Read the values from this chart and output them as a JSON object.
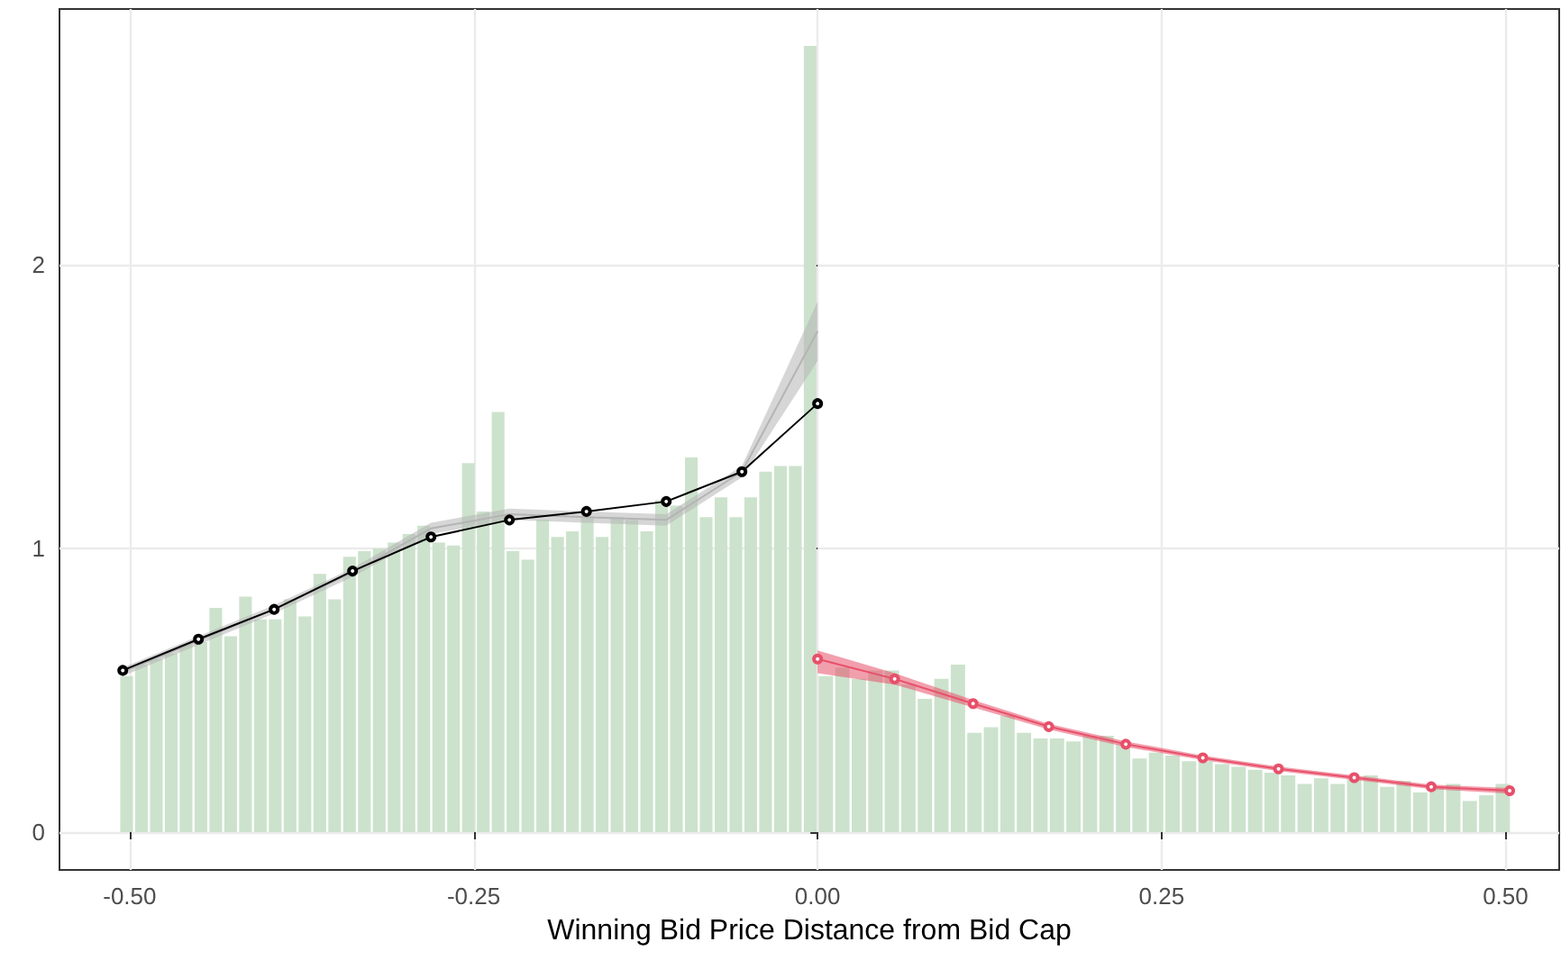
{
  "chart_data": {
    "type": "histogram",
    "xlabel": "Winning Bid Price Distance from Bid Cap",
    "bins": [
      -0.5076,
      -0.4968,
      -0.486,
      -0.4752,
      -0.4644,
      -0.4536,
      -0.4428,
      -0.432,
      -0.4212,
      -0.4104,
      -0.3996,
      -0.3888,
      -0.378,
      -0.3672,
      -0.3564,
      -0.3456,
      -0.3348,
      -0.324,
      -0.3132,
      -0.3024,
      -0.2916,
      -0.2808,
      -0.27,
      -0.2592,
      -0.2484,
      -0.2376,
      -0.2268,
      -0.216,
      -0.2052,
      -0.1944,
      -0.1836,
      -0.1728,
      -0.162,
      -0.1512,
      -0.1404,
      -0.1296,
      -0.1188,
      -0.108,
      -0.0972,
      -0.0864,
      -0.0756,
      -0.0648,
      -0.054,
      -0.0432,
      -0.0324,
      -0.0216,
      -0.0108,
      0,
      0.012,
      0.024,
      0.036,
      0.048,
      0.06,
      0.072,
      0.084,
      0.096,
      0.108,
      0.12,
      0.132,
      0.144,
      0.156,
      0.168,
      0.18,
      0.192,
      0.204,
      0.216,
      0.228,
      0.24,
      0.252,
      0.264,
      0.276,
      0.288,
      0.3,
      0.312,
      0.324,
      0.336,
      0.348,
      0.36,
      0.372,
      0.384,
      0.396,
      0.408,
      0.42,
      0.432,
      0.444,
      0.456,
      0.468,
      0.48,
      0.492,
      0.504
    ],
    "values": [
      0.55,
      0.59,
      0.61,
      0.63,
      0.66,
      0.67,
      0.79,
      0.69,
      0.83,
      0.75,
      0.75,
      0.82,
      0.76,
      0.91,
      0.82,
      0.97,
      0.99,
      1.0,
      1.02,
      1.05,
      1.08,
      1.02,
      1.01,
      1.3,
      1.13,
      1.48,
      0.99,
      0.96,
      1.1,
      1.04,
      1.06,
      1.11,
      1.04,
      1.11,
      1.1,
      1.06,
      1.17,
      1.15,
      1.32,
      1.11,
      1.18,
      1.11,
      1.18,
      1.27,
      1.29,
      1.29,
      2.77,
      0.55,
      0.58,
      0.54,
      0.57,
      0.57,
      0.52,
      0.47,
      0.54,
      0.59,
      0.35,
      0.37,
      0.41,
      0.35,
      0.33,
      0.33,
      0.32,
      0.34,
      0.34,
      0.31,
      0.26,
      0.28,
      0.27,
      0.25,
      0.25,
      0.24,
      0.23,
      0.22,
      0.21,
      0.2,
      0.17,
      0.19,
      0.17,
      0.19,
      0.2,
      0.16,
      0.18,
      0.14,
      0.16,
      0.17,
      0.11,
      0.13,
      0.17
    ],
    "color": "#cce2cc",
    "series": [
      {
        "type": "line",
        "color": "#b4b4b4",
        "marker": "none",
        "x": [
          -0.505,
          -0.395,
          -0.338,
          -0.281,
          -0.224,
          -0.168,
          -0.11,
          -0.055,
          0
        ],
        "values": [
          0.565,
          0.785,
          0.915,
          1.07,
          1.12,
          1.11,
          1.1,
          1.27,
          1.765
        ],
        "lower": [
          0.55,
          0.77,
          0.9,
          1.05,
          1.1,
          1.09,
          1.08,
          1.25,
          1.66
        ],
        "upper": [
          0.58,
          0.8,
          0.93,
          1.09,
          1.14,
          1.13,
          1.12,
          1.29,
          1.87
        ]
      },
      {
        "type": "line",
        "color": "#000000",
        "marker": "circle",
        "x": [
          -0.505,
          -0.45,
          -0.395,
          -0.338,
          -0.281,
          -0.224,
          -0.168,
          -0.11,
          -0.055,
          0
        ],
        "values": [
          0.57,
          0.68,
          0.785,
          0.92,
          1.04,
          1.1,
          1.13,
          1.165,
          1.27,
          1.51
        ]
      },
      {
        "type": "line",
        "color": "#e8506a",
        "marker": "circle",
        "x": [
          0,
          0.056,
          0.113,
          0.168,
          0.224,
          0.28,
          0.335,
          0.39,
          0.446,
          0.503
        ],
        "values": [
          0.61,
          0.54,
          0.453,
          0.372,
          0.31,
          0.262,
          0.223,
          0.192,
          0.16,
          0.146
        ],
        "lower": [
          0.56,
          0.52,
          0.44,
          0.362,
          0.3,
          0.254,
          0.215,
          0.184,
          0.152,
          0.136
        ],
        "upper": [
          0.64,
          0.56,
          0.466,
          0.382,
          0.32,
          0.27,
          0.231,
          0.2,
          0.168,
          0.156
        ]
      }
    ],
    "xlim": [
      -0.551,
      0.539
    ],
    "ylim": [
      -0.133,
      2.9
    ],
    "xticks": [
      {
        "value": -0.5,
        "label": "-0.50"
      },
      {
        "value": -0.25,
        "label": "-0.25"
      },
      {
        "value": 0,
        "label": "0.00"
      },
      {
        "value": 0.25,
        "label": "0.25"
      },
      {
        "value": 0.5,
        "label": "0.50"
      }
    ],
    "yticks": [
      0,
      1,
      2
    ],
    "grid": true
  }
}
